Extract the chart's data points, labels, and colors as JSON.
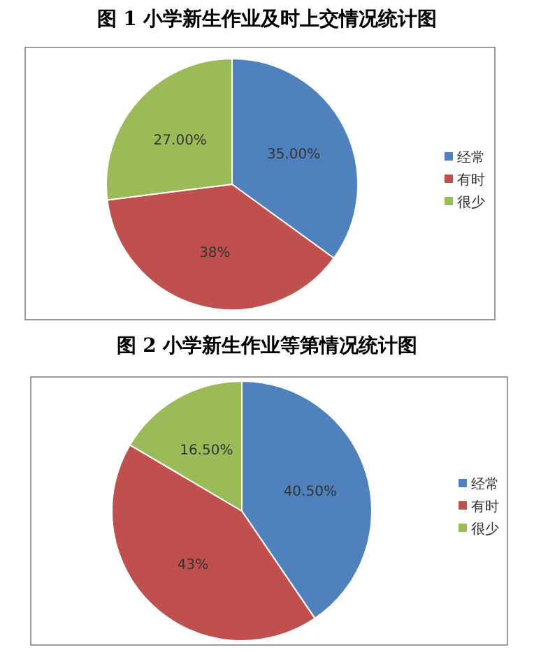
{
  "chart_data": [
    {
      "type": "pie",
      "title": "图 1 小学新生作业及时上交情况统计图",
      "categories": [
        "经常",
        "有时",
        "很少"
      ],
      "values": [
        35,
        38,
        27
      ],
      "colors": [
        "#4f81bd",
        "#c0504d",
        "#9bbb59"
      ],
      "value_labels": [
        "35.00%",
        "38%",
        "27.00%"
      ],
      "legend": "right"
    },
    {
      "type": "pie",
      "title": "图 2 小学新生作业等第情况统计图",
      "categories": [
        "经常",
        "有时",
        "很少"
      ],
      "values": [
        40.5,
        43,
        16.5
      ],
      "colors": [
        "#4f81bd",
        "#c0504d",
        "#9bbb59"
      ],
      "value_labels": [
        "40.50%",
        "43%",
        "16.50%"
      ],
      "legend": "right"
    }
  ]
}
